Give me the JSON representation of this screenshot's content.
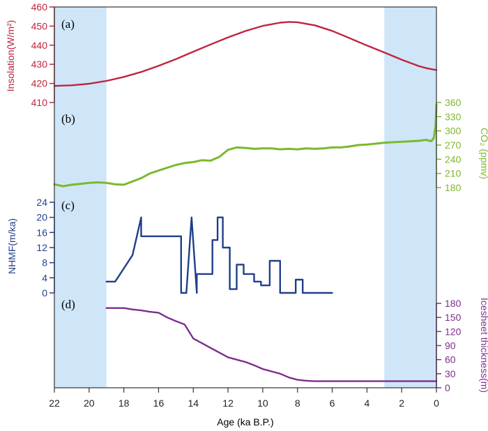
{
  "chart_data": {
    "type": "line",
    "shared_x": {
      "label": "Age (ka B.P.)",
      "range": [
        22,
        0
      ],
      "ticks": [
        22,
        20,
        18,
        16,
        14,
        12,
        10,
        8,
        6,
        4,
        2,
        0
      ],
      "tick_labels": [
        "22",
        "20",
        "18",
        "16",
        "14",
        "12",
        "10",
        "8",
        "6",
        "4",
        "2",
        "0"
      ]
    },
    "shaded_intervals": [
      {
        "from": 22,
        "to": 19,
        "color": "#cfe6f8"
      },
      {
        "from": 3,
        "to": 0,
        "color": "#cfe6f8"
      }
    ],
    "panels": [
      {
        "label": "(a)",
        "name": "Insolation",
        "ylabel": "Insolation(W/m²)",
        "axis_side": "left",
        "color": "#c0243c",
        "ylim": [
          410,
          460
        ],
        "ticks": [
          410,
          420,
          430,
          440,
          450,
          460
        ],
        "tick_labels": [
          "410",
          "420",
          "430",
          "440",
          "450",
          "460"
        ],
        "x": [
          22,
          21,
          20,
          19,
          18,
          17,
          16,
          15,
          14,
          13,
          12,
          11,
          10,
          9,
          8.5,
          8,
          7,
          6,
          5,
          4,
          3,
          2,
          1,
          0.5,
          0
        ],
        "y": [
          418.7,
          419.0,
          419.8,
          421.3,
          423.4,
          426.0,
          429.2,
          432.7,
          436.6,
          440.4,
          444.1,
          447.4,
          450.1,
          451.8,
          452.2,
          452.0,
          450.4,
          447.5,
          443.7,
          439.8,
          436.2,
          432.4,
          429.0,
          427.8,
          427.0
        ]
      },
      {
        "label": "(b)",
        "name": "CO2",
        "ylabel": "CO₂ (ppmv)",
        "axis_side": "right",
        "color": "#7cb82f",
        "ylim": [
          165,
          365
        ],
        "ticks": [
          180,
          210,
          240,
          270,
          300,
          330,
          360
        ],
        "tick_labels": [
          "180",
          "210",
          "240",
          "270",
          "300",
          "330",
          "360"
        ],
        "x": [
          22,
          21.5,
          21,
          20.5,
          20,
          19.5,
          19,
          18.5,
          18,
          17.5,
          17,
          16.5,
          16,
          15.5,
          15,
          14.5,
          14,
          13.5,
          13,
          12.5,
          12,
          11.5,
          11,
          10.5,
          10,
          9.5,
          9,
          8.5,
          8,
          7.5,
          7,
          6.5,
          6,
          5.5,
          5,
          4.5,
          4,
          3.5,
          3,
          2.5,
          2,
          1.5,
          1,
          0.6,
          0.3,
          0.15,
          0.05,
          0
        ],
        "y": [
          187,
          183,
          186,
          188,
          190,
          191,
          190,
          187,
          186,
          193,
          200,
          210,
          216,
          222,
          228,
          232,
          234,
          238,
          237,
          245,
          260,
          265,
          264,
          262,
          263,
          263,
          261,
          262,
          261,
          263,
          262,
          263,
          265,
          265,
          267,
          270,
          271,
          273,
          275,
          276,
          277,
          278,
          279,
          281,
          278,
          285,
          310,
          355
        ]
      },
      {
        "label": "(c)",
        "name": "NHMF",
        "ylabel": "NHMF(m/ka)",
        "axis_side": "left",
        "color": "#203f8a",
        "ylim": [
          0,
          24
        ],
        "ticks": [
          0,
          4,
          8,
          12,
          16,
          20,
          24
        ],
        "tick_labels": [
          "0",
          "4",
          "8",
          "12",
          "16",
          "20",
          "24"
        ],
        "x": [
          19,
          18.5,
          17.5,
          17,
          17,
          14.7,
          14.7,
          14.4,
          14.1,
          13.8,
          13.8,
          12.9,
          12.9,
          12.6,
          12.6,
          12.3,
          12.3,
          11.9,
          11.9,
          11.5,
          11.5,
          11.1,
          11.1,
          10.5,
          10.5,
          10.1,
          10.1,
          9.6,
          9.6,
          9.0,
          9.0,
          8.1,
          8.1,
          7.7,
          7.7,
          7.1,
          7.1,
          6.0
        ],
        "y": [
          3,
          3,
          10,
          20,
          15,
          15,
          0,
          0,
          20,
          0,
          5,
          5,
          14,
          14,
          20,
          20,
          12,
          12,
          1,
          1,
          7.5,
          7.5,
          5,
          5,
          3,
          3,
          2,
          2,
          8.5,
          8.5,
          0,
          0,
          3.5,
          3.5,
          0,
          0,
          0,
          0
        ]
      },
      {
        "label": "(d)",
        "name": "Icesheet thickness",
        "ylabel": "Icesheet thickness(m)",
        "axis_side": "right",
        "color": "#7d2e8c",
        "ylim": [
          0,
          180
        ],
        "ticks": [
          0,
          30,
          60,
          90,
          120,
          150,
          180
        ],
        "tick_labels": [
          "0",
          "30",
          "60",
          "90",
          "120",
          "150",
          "180"
        ],
        "x": [
          19,
          18,
          17.5,
          17,
          16.5,
          16,
          15.5,
          15,
          14.5,
          14,
          13.5,
          13,
          12.5,
          12,
          11.5,
          11,
          10.5,
          10,
          9.5,
          9,
          8.5,
          8,
          7.5,
          7,
          6,
          5,
          4,
          3,
          2,
          1,
          0
        ],
        "y": [
          170,
          170,
          167,
          165,
          162,
          160,
          150,
          142,
          135,
          105,
          95,
          85,
          75,
          65,
          60,
          55,
          48,
          40,
          35,
          30,
          22,
          17,
          15,
          14,
          14,
          14,
          14,
          14,
          14,
          14,
          14
        ]
      }
    ]
  }
}
